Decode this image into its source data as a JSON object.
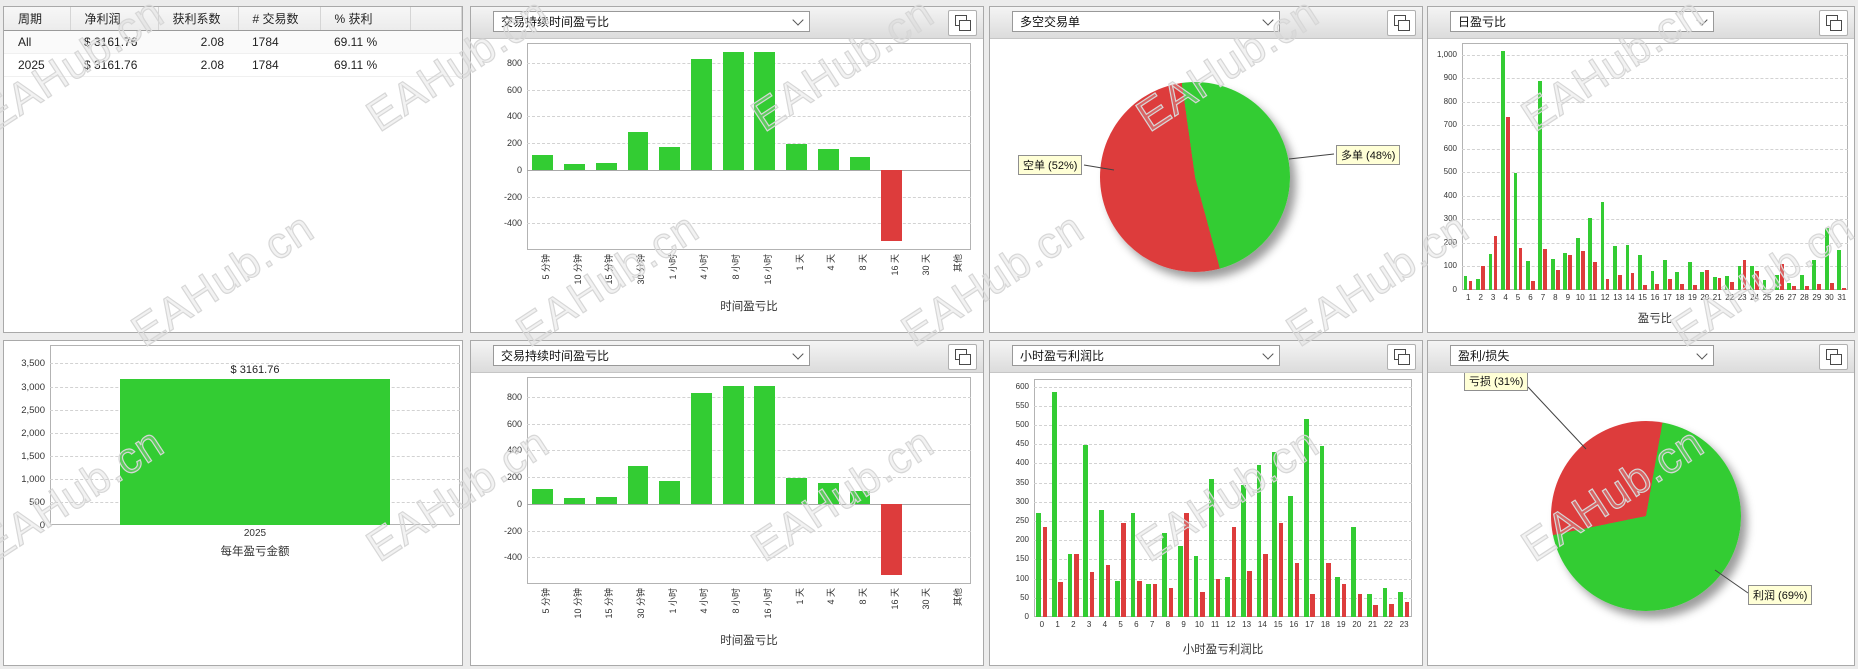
{
  "watermark": {
    "text": "EAHub.cn"
  },
  "colors": {
    "profit_green": "#33cc33",
    "loss_red": "#dd3c3c",
    "net_profit_blue": "#0000dd"
  },
  "summary_table": {
    "columns": [
      "周期",
      "净利润",
      "获利系数",
      "# 交易数",
      "% 获利"
    ],
    "rows": [
      [
        "All",
        "$ 3161.76",
        "2.08",
        "1784",
        "69.11 %"
      ],
      [
        "2025",
        "$ 3161.76",
        "2.08",
        "1784",
        "69.11 %"
      ]
    ]
  },
  "panels": {
    "duration_top": {
      "selector": "交易持续时间盈亏比"
    },
    "long_short": {
      "selector": "多空交易单"
    },
    "daily": {
      "selector": "日盈亏比"
    },
    "duration_bottom": {
      "selector": "交易持续时间盈亏比"
    },
    "hourly": {
      "selector": "小时盈亏利润比"
    },
    "profit_loss": {
      "selector": "盈利/损失"
    }
  },
  "chart_data": [
    {
      "id": "duration_pl",
      "type": "bar",
      "title": "时间盈亏比",
      "categories": [
        "5 分钟",
        "10 分钟",
        "15 分钟",
        "30 分钟",
        "1 小时",
        "4 小时",
        "8 小时",
        "16 小时",
        "1 天",
        "4 天",
        "8 天",
        "16 天",
        "30 天",
        "其他"
      ],
      "values": [
        110,
        45,
        55,
        280,
        175,
        830,
        880,
        880,
        190,
        155,
        95,
        -530,
        0,
        0
      ],
      "yticks": [
        800,
        600,
        400,
        200,
        0,
        -200,
        -400
      ],
      "ylim": [
        -600,
        950
      ],
      "grid": "dashed",
      "note": "shown in two panels (top and bottom)"
    },
    {
      "id": "long_short_pie",
      "type": "pie",
      "slices": [
        {
          "label": "多单 (48%)",
          "value": 48,
          "color": "green"
        },
        {
          "label": "空单 (52%)",
          "value": 52,
          "color": "red"
        }
      ]
    },
    {
      "id": "daily_pl",
      "type": "bar",
      "title": "盈亏比",
      "categories": [
        "1",
        "2",
        "3",
        "4",
        "5",
        "6",
        "7",
        "8",
        "9",
        "10",
        "11",
        "12",
        "13",
        "14",
        "15",
        "16",
        "17",
        "18",
        "19",
        "20",
        "21",
        "22",
        "23",
        "24",
        "25",
        "26",
        "27",
        "28",
        "29",
        "30",
        "31"
      ],
      "series": [
        {
          "name": "profit",
          "values": [
            60,
            48,
            155,
            1015,
            497,
            122,
            890,
            130,
            158,
            222,
            308,
            372,
            188,
            192,
            150,
            79,
            128,
            75,
            118,
            76,
            55,
            58,
            102,
            103,
            44,
            64,
            31,
            65,
            127,
            262,
            169
          ]
        },
        {
          "name": "loss",
          "values": [
            40,
            100,
            228,
            737,
            177,
            37,
            175,
            85,
            147,
            165,
            117,
            48,
            63,
            71,
            22,
            27,
            45,
            27,
            22,
            84,
            52,
            36,
            127,
            81,
            5,
            110,
            19,
            18,
            27,
            31,
            8
          ]
        }
      ],
      "yticks": [
        1000,
        900,
        800,
        700,
        600,
        500,
        400,
        300,
        200,
        100,
        0
      ],
      "ylim": [
        0,
        1050
      ],
      "grid": "dashed"
    },
    {
      "id": "yearly_pl",
      "type": "bar",
      "title": "每年盈亏金额",
      "categories": [
        "2025"
      ],
      "values": [
        3161.76
      ],
      "bar_label": "$ 3161.76",
      "yticks": [
        3500,
        3000,
        2500,
        2000,
        1500,
        1000,
        500,
        0
      ],
      "ylim": [
        0,
        3900
      ],
      "grid": "dashed"
    },
    {
      "id": "hourly_pl",
      "type": "bar",
      "title": "小时盈亏利润比",
      "categories": [
        "0",
        "1",
        "2",
        "3",
        "4",
        "5",
        "6",
        "7",
        "8",
        "9",
        "10",
        "11",
        "12",
        "13",
        "14",
        "15",
        "16",
        "17",
        "18",
        "19",
        "20",
        "21",
        "22",
        "23"
      ],
      "series": [
        {
          "name": "profit",
          "values": [
            270,
            585,
            165,
            447,
            278,
            95,
            270,
            85,
            220,
            185,
            160,
            360,
            105,
            345,
            395,
            430,
            315,
            515,
            445,
            105,
            235,
            60,
            75,
            65
          ]
        },
        {
          "name": "loss",
          "values": [
            235,
            90,
            163,
            118,
            135,
            244,
            95,
            85,
            75,
            270,
            65,
            100,
            235,
            120,
            165,
            245,
            140,
            60,
            140,
            85,
            60,
            30,
            35,
            40
          ]
        }
      ],
      "yticks": [
        600,
        550,
        500,
        450,
        400,
        350,
        300,
        250,
        200,
        150,
        100,
        50,
        0
      ],
      "ylim": [
        0,
        620
      ],
      "grid": "dashed"
    },
    {
      "id": "profit_loss_pie",
      "type": "pie",
      "slices": [
        {
          "label": "利润 (69%)",
          "value": 69,
          "color": "green"
        },
        {
          "label": "亏损 (31%)",
          "value": 31,
          "color": "red"
        }
      ]
    }
  ]
}
